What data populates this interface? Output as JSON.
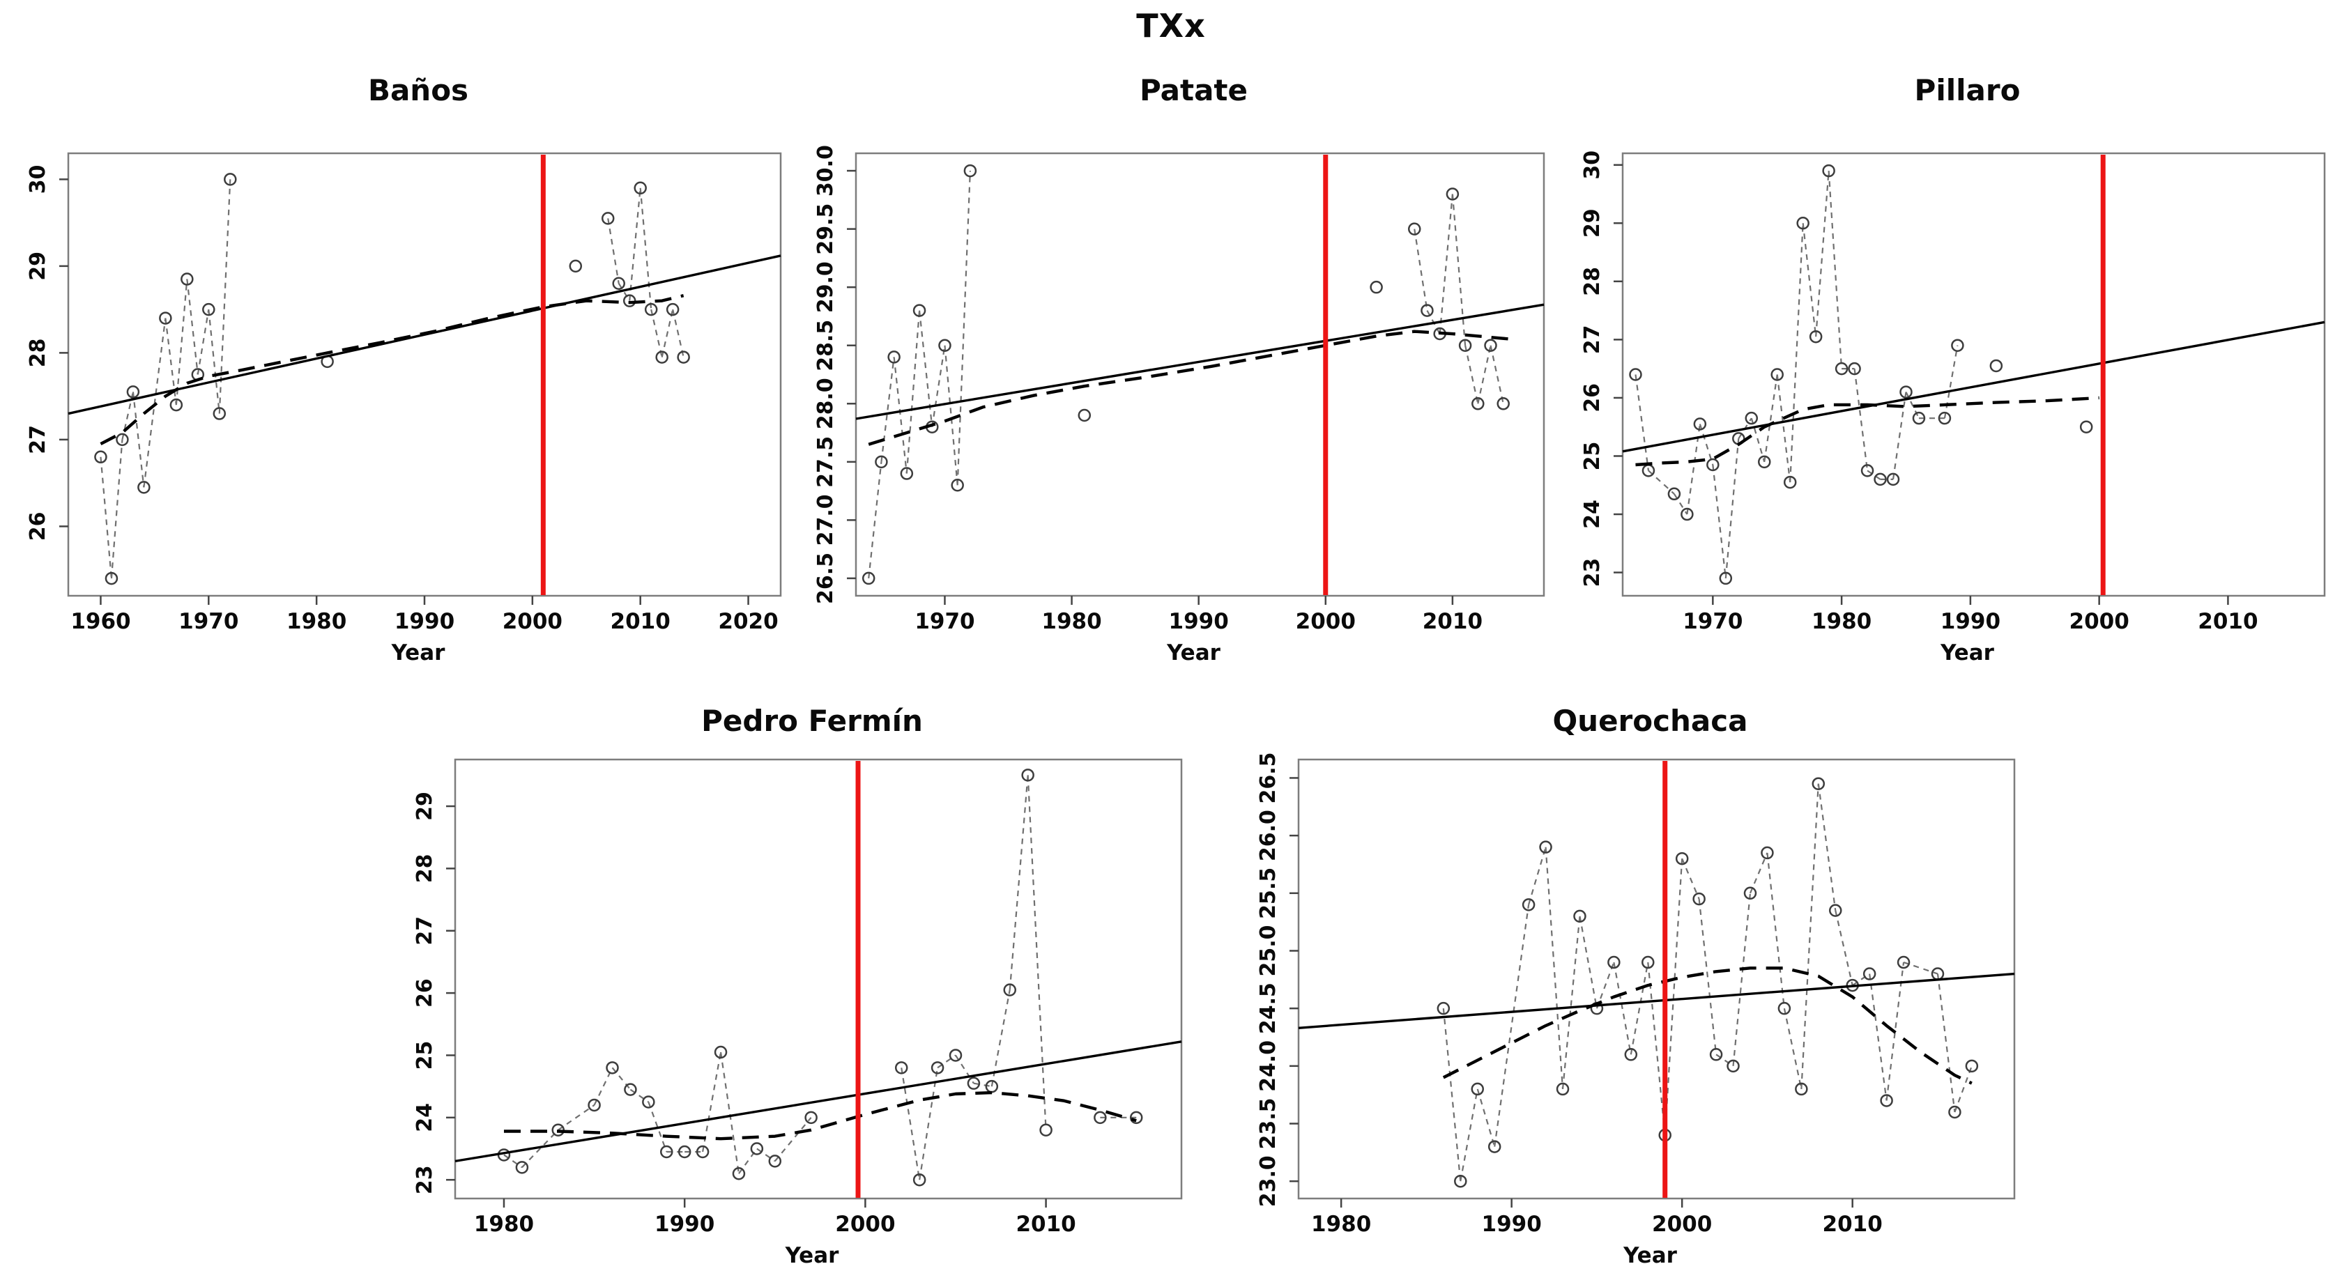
{
  "page_title": "TXx",
  "colors": {
    "red_line": "#ec1515",
    "trend_line": "#000000",
    "lowess_line": "#000000",
    "series_line": "#6f6f6f",
    "point_stroke": "#3d3d3d",
    "box_stroke": "#7d7d7d",
    "tick_stroke": "#444444"
  },
  "chart_data": [
    {
      "type": "line",
      "title": "Baños",
      "xlabel": "Year",
      "xlim": [
        1957,
        2023
      ],
      "ylim": [
        25.2,
        30.3
      ],
      "x_ticks": [
        1960,
        1970,
        1980,
        1990,
        2000,
        2010,
        2020
      ],
      "y_ticks": [
        "26",
        "27",
        "28",
        "29",
        "30"
      ],
      "y_tick_values": [
        26,
        27,
        28,
        29,
        30
      ],
      "red_line_x": 2001,
      "trend": {
        "x": [
          1957,
          2023
        ],
        "y": [
          27.3,
          29.12
        ]
      },
      "lowess": [
        [
          1960,
          26.95
        ],
        [
          1962,
          27.08
        ],
        [
          1964,
          27.3
        ],
        [
          1966,
          27.5
        ],
        [
          1968,
          27.65
        ],
        [
          1970,
          27.73
        ],
        [
          1973,
          27.8
        ],
        [
          1977,
          27.9
        ],
        [
          1981,
          28.0
        ],
        [
          1986,
          28.12
        ],
        [
          1991,
          28.25
        ],
        [
          1996,
          28.4
        ],
        [
          2001,
          28.53
        ],
        [
          2005,
          28.6
        ],
        [
          2009,
          28.58
        ],
        [
          2012,
          28.6
        ],
        [
          2014,
          28.66
        ]
      ],
      "points": [
        [
          1960,
          26.8
        ],
        [
          1961,
          25.4
        ],
        [
          1962,
          27.0
        ],
        [
          1963,
          27.55
        ],
        [
          1964,
          26.45
        ],
        [
          1966,
          28.4
        ],
        [
          1967,
          27.4
        ],
        [
          1968,
          28.85
        ],
        [
          1969,
          27.75
        ],
        [
          1970,
          28.5
        ],
        [
          1971,
          27.3
        ],
        [
          1972,
          30.0
        ],
        [
          1981,
          27.9
        ],
        [
          2004,
          29.0
        ],
        [
          2007,
          29.55
        ],
        [
          2008,
          28.8
        ],
        [
          2009,
          28.6
        ],
        [
          2010,
          29.9
        ],
        [
          2011,
          28.5
        ],
        [
          2012,
          27.95
        ],
        [
          2013,
          28.5
        ],
        [
          2014,
          27.95
        ]
      ],
      "gap_connect_max_years": 2
    },
    {
      "type": "line",
      "title": "Patate",
      "xlabel": "Year",
      "xlim": [
        1963,
        2017.2
      ],
      "ylim": [
        26.35,
        30.15
      ],
      "x_ticks": [
        1970,
        1980,
        1990,
        2000,
        2010
      ],
      "y_ticks": [
        "26.5",
        "27.0",
        "27.5",
        "28.0",
        "28.5",
        "29.0",
        "29.5",
        "30.0"
      ],
      "y_tick_values": [
        26.5,
        27.0,
        27.5,
        28.0,
        28.5,
        29.0,
        29.5,
        30.0
      ],
      "red_line_x": 2000,
      "trend": {
        "x": [
          1963,
          2017.2
        ],
        "y": [
          27.87,
          28.85
        ]
      },
      "lowess": [
        [
          1964,
          27.65
        ],
        [
          1967,
          27.75
        ],
        [
          1970,
          27.85
        ],
        [
          1973,
          27.97
        ],
        [
          1977,
          28.07
        ],
        [
          1981,
          28.15
        ],
        [
          1986,
          28.23
        ],
        [
          1991,
          28.32
        ],
        [
          1996,
          28.42
        ],
        [
          2000,
          28.5
        ],
        [
          2004,
          28.58
        ],
        [
          2007,
          28.62
        ],
        [
          2010,
          28.6
        ],
        [
          2013,
          28.57
        ],
        [
          2015,
          28.55
        ]
      ],
      "points": [
        [
          1964,
          26.5
        ],
        [
          1965,
          27.5
        ],
        [
          1966,
          28.4
        ],
        [
          1967,
          27.4
        ],
        [
          1968,
          28.8
        ],
        [
          1969,
          27.8
        ],
        [
          1970,
          28.5
        ],
        [
          1971,
          27.3
        ],
        [
          1972,
          30.0
        ],
        [
          1981,
          27.9
        ],
        [
          2004,
          29.0
        ],
        [
          2007,
          29.5
        ],
        [
          2008,
          28.8
        ],
        [
          2009,
          28.6
        ],
        [
          2010,
          29.8
        ],
        [
          2011,
          28.5
        ],
        [
          2012,
          28.0
        ],
        [
          2013,
          28.5
        ],
        [
          2014,
          28.0
        ]
      ],
      "gap_connect_max_years": 2
    },
    {
      "type": "line",
      "title": "Pillaro",
      "xlabel": "Year",
      "xlim": [
        1963,
        2017.5
      ],
      "ylim": [
        22.6,
        30.2
      ],
      "x_ticks": [
        1970,
        1980,
        1990,
        2000,
        2010
      ],
      "y_ticks": [
        "23",
        "24",
        "25",
        "26",
        "27",
        "28",
        "29",
        "30"
      ],
      "y_tick_values": [
        23,
        24,
        25,
        26,
        27,
        28,
        29,
        30
      ],
      "red_line_x": 2000.3,
      "trend": {
        "x": [
          1963,
          2017.5
        ],
        "y": [
          25.08,
          27.3
        ]
      },
      "lowess": [
        [
          1964,
          24.85
        ],
        [
          1966,
          24.88
        ],
        [
          1968,
          24.9
        ],
        [
          1970,
          24.95
        ],
        [
          1972,
          25.2
        ],
        [
          1974,
          25.5
        ],
        [
          1976,
          25.7
        ],
        [
          1977,
          25.8
        ],
        [
          1979,
          25.88
        ],
        [
          1982,
          25.88
        ],
        [
          1985,
          25.85
        ],
        [
          1988,
          25.88
        ],
        [
          1992,
          25.92
        ],
        [
          1996,
          25.95
        ],
        [
          2000,
          26.0
        ]
      ],
      "points": [
        [
          1964,
          26.4
        ],
        [
          1965,
          24.75
        ],
        [
          1967,
          24.35
        ],
        [
          1968,
          24.0
        ],
        [
          1969,
          25.55
        ],
        [
          1970,
          24.85
        ],
        [
          1971,
          22.9
        ],
        [
          1972,
          25.3
        ],
        [
          1973,
          25.65
        ],
        [
          1974,
          24.9
        ],
        [
          1975,
          26.4
        ],
        [
          1976,
          24.55
        ],
        [
          1977,
          29.0
        ],
        [
          1978,
          27.05
        ],
        [
          1979,
          29.9
        ],
        [
          1980,
          26.5
        ],
        [
          1981,
          26.5
        ],
        [
          1982,
          24.75
        ],
        [
          1983,
          24.6
        ],
        [
          1984,
          24.6
        ],
        [
          1985,
          26.1
        ],
        [
          1986,
          25.65
        ],
        [
          1988,
          25.65
        ],
        [
          1989,
          26.9
        ],
        [
          1992,
          26.55
        ],
        [
          1999,
          25.5
        ]
      ],
      "gap_connect_max_years": 2
    },
    {
      "type": "line",
      "title": "Pedro Fermín",
      "xlabel": "Year",
      "xlim": [
        1977.3,
        2017.5
      ],
      "ylim": [
        22.7,
        29.75
      ],
      "x_ticks": [
        1980,
        1990,
        2000,
        2010
      ],
      "y_ticks": [
        "23",
        "24",
        "25",
        "26",
        "27",
        "28",
        "29"
      ],
      "y_tick_values": [
        23,
        24,
        25,
        26,
        27,
        28,
        29
      ],
      "red_line_x": 1999.6,
      "trend": {
        "x": [
          1977.3,
          2017.5
        ],
        "y": [
          23.3,
          25.22
        ]
      },
      "lowess": [
        [
          1980,
          23.78
        ],
        [
          1983,
          23.78
        ],
        [
          1986,
          23.75
        ],
        [
          1989,
          23.7
        ],
        [
          1992,
          23.66
        ],
        [
          1995,
          23.7
        ],
        [
          1997,
          23.8
        ],
        [
          2000,
          24.05
        ],
        [
          2003,
          24.28
        ],
        [
          2005,
          24.38
        ],
        [
          2007,
          24.4
        ],
        [
          2009,
          24.35
        ],
        [
          2011,
          24.27
        ],
        [
          2013,
          24.12
        ],
        [
          2015,
          23.95
        ]
      ],
      "points": [
        [
          1980,
          23.4
        ],
        [
          1981,
          23.2
        ],
        [
          1983,
          23.8
        ],
        [
          1985,
          24.2
        ],
        [
          1986,
          24.8
        ],
        [
          1987,
          24.45
        ],
        [
          1988,
          24.25
        ],
        [
          1989,
          23.45
        ],
        [
          1990,
          23.45
        ],
        [
          1991,
          23.45
        ],
        [
          1992,
          25.05
        ],
        [
          1993,
          23.1
        ],
        [
          1994,
          23.5
        ],
        [
          1995,
          23.3
        ],
        [
          1997,
          24.0
        ],
        [
          2002,
          24.8
        ],
        [
          2003,
          23.0
        ],
        [
          2004,
          24.8
        ],
        [
          2005,
          25.0
        ],
        [
          2006,
          24.55
        ],
        [
          2007,
          24.5
        ],
        [
          2008,
          26.05
        ],
        [
          2009,
          29.5
        ],
        [
          2010,
          23.8
        ],
        [
          2013,
          24.0
        ],
        [
          2015,
          24.0
        ]
      ],
      "gap_connect_max_years": 2
    },
    {
      "type": "line",
      "title": "Querochaca",
      "xlabel": "Year",
      "xlim": [
        1977.5,
        2019.5
      ],
      "ylim": [
        22.85,
        26.66
      ],
      "x_ticks": [
        1980,
        1990,
        2000,
        2010
      ],
      "y_ticks": [
        "23.0",
        "23.5",
        "24.0",
        "24.5",
        "25.0",
        "25.5",
        "26.0",
        "26.5"
      ],
      "y_tick_values": [
        23.0,
        23.5,
        24.0,
        24.5,
        25.0,
        25.5,
        26.0,
        26.5
      ],
      "red_line_x": 1999,
      "trend": {
        "x": [
          1977.5,
          2019.5
        ],
        "y": [
          24.33,
          24.8
        ]
      },
      "lowess": [
        [
          1986,
          23.9
        ],
        [
          1988,
          24.05
        ],
        [
          1990,
          24.2
        ],
        [
          1992,
          24.35
        ],
        [
          1994,
          24.48
        ],
        [
          1996,
          24.6
        ],
        [
          1998,
          24.7
        ],
        [
          2000,
          24.77
        ],
        [
          2002,
          24.82
        ],
        [
          2004,
          24.85
        ],
        [
          2006,
          24.85
        ],
        [
          2008,
          24.78
        ],
        [
          2010,
          24.6
        ],
        [
          2012,
          24.35
        ],
        [
          2014,
          24.12
        ],
        [
          2016,
          23.92
        ],
        [
          2017,
          23.85
        ]
      ],
      "points": [
        [
          1986,
          24.5
        ],
        [
          1987,
          23.0
        ],
        [
          1988,
          23.8
        ],
        [
          1989,
          23.3
        ],
        [
          1991,
          25.4
        ],
        [
          1992,
          25.9
        ],
        [
          1993,
          23.8
        ],
        [
          1994,
          25.3
        ],
        [
          1995,
          24.5
        ],
        [
          1996,
          24.9
        ],
        [
          1997,
          24.1
        ],
        [
          1998,
          24.9
        ],
        [
          1999,
          23.4
        ],
        [
          2000,
          25.8
        ],
        [
          2001,
          25.45
        ],
        [
          2002,
          24.1
        ],
        [
          2003,
          24.0
        ],
        [
          2004,
          25.5
        ],
        [
          2005,
          25.85
        ],
        [
          2006,
          24.5
        ],
        [
          2007,
          23.8
        ],
        [
          2008,
          26.45
        ],
        [
          2009,
          25.35
        ],
        [
          2010,
          24.7
        ],
        [
          2011,
          24.8
        ],
        [
          2012,
          23.7
        ],
        [
          2013,
          24.9
        ],
        [
          2015,
          24.8
        ],
        [
          2016,
          23.6
        ],
        [
          2017,
          24.0
        ]
      ],
      "gap_connect_max_years": 2
    }
  ]
}
